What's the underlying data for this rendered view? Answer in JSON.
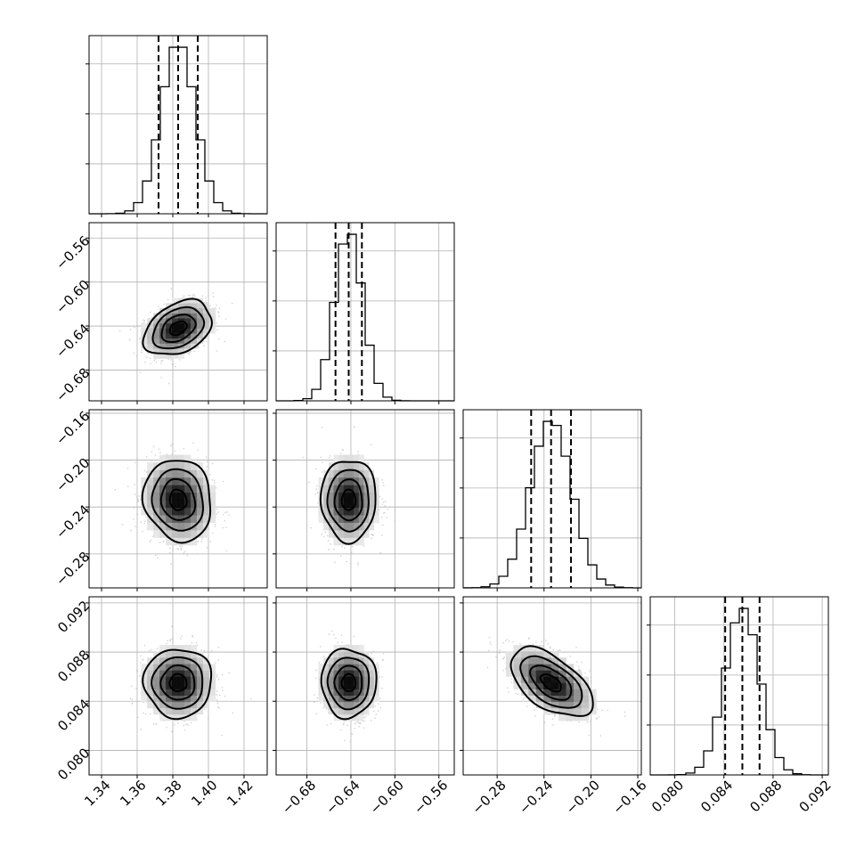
{
  "chart_data": {
    "type": "corner",
    "parameters": 4,
    "grid": true,
    "quantiles": [
      0.16,
      0.5,
      0.84
    ],
    "colors": {
      "contour": "#000000",
      "points": "#bdbdbd",
      "grid": "#b0b0b0",
      "density": "#000000"
    },
    "params": [
      {
        "mean": 1.383,
        "sd": 0.0095,
        "range": [
          1.333,
          1.433
        ],
        "quantiles": [
          1.372,
          1.383,
          1.394
        ],
        "ticks": [
          1.34,
          1.36,
          1.38,
          1.4,
          1.42
        ],
        "tick_labels": [
          "1.34",
          "1.36",
          "1.38",
          "1.40",
          "1.42"
        ]
      },
      {
        "mean": -0.642,
        "sd": 0.0125,
        "range": [
          -0.708,
          -0.546
        ],
        "quantiles": [
          -0.654,
          -0.642,
          -0.63
        ],
        "ticks": [
          -0.68,
          -0.64,
          -0.6,
          -0.56
        ],
        "tick_labels": [
          "−0.68",
          "−0.64",
          "−0.60",
          "−0.56"
        ]
      },
      {
        "mean": -0.234,
        "sd": 0.0175,
        "range": [
          -0.309,
          -0.157
        ],
        "quantiles": [
          -0.251,
          -0.234,
          -0.217
        ],
        "ticks": [
          -0.28,
          -0.24,
          -0.2,
          -0.16
        ],
        "tick_labels": [
          "−0.28",
          "−0.24",
          "−0.20",
          "−0.16"
        ]
      },
      {
        "mean": 0.0855,
        "sd": 0.0014,
        "range": [
          0.078,
          0.0925
        ],
        "quantiles": [
          0.0841,
          0.0855,
          0.0869
        ],
        "ticks": [
          0.08,
          0.084,
          0.088,
          0.092
        ],
        "tick_labels": [
          "0.080",
          "0.084",
          "0.088",
          "0.092"
        ]
      }
    ],
    "correlations": [
      {
        "x": 0,
        "y": 1,
        "rho": 0.35
      },
      {
        "x": 0,
        "y": 2,
        "rho": -0.1
      },
      {
        "x": 1,
        "y": 2,
        "rho": 0.0
      },
      {
        "x": 0,
        "y": 3,
        "rho": 0.0
      },
      {
        "x": 1,
        "y": 3,
        "rho": 0.0
      },
      {
        "x": 2,
        "y": 3,
        "rho": -0.55
      }
    ],
    "histogram_bins": 20,
    "contour_levels": [
      0.5,
      1.0,
      1.5,
      2.0
    ]
  }
}
